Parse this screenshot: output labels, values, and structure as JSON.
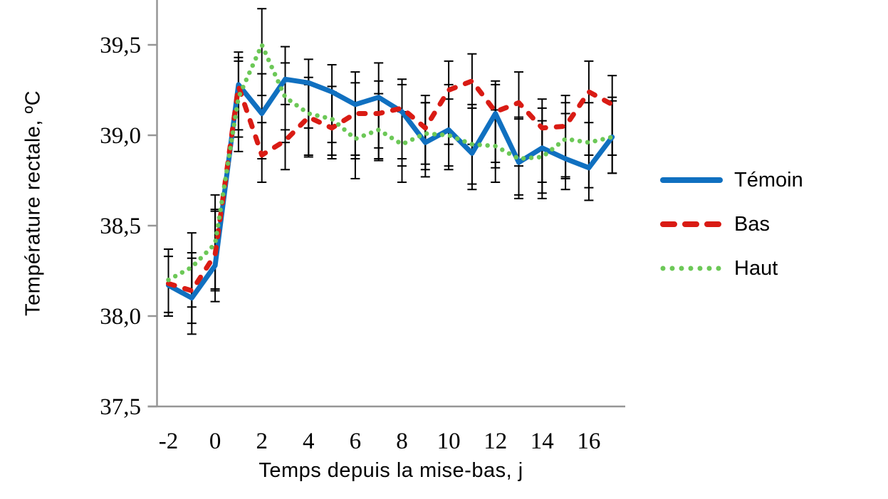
{
  "chart_data": {
    "type": "line",
    "title": "",
    "x_label": "Temps depuis la mise-bas, j",
    "y_label": "Température rectale, ºC",
    "x": [
      -2,
      -1,
      0,
      1,
      2,
      3,
      4,
      5,
      6,
      7,
      8,
      9,
      10,
      11,
      12,
      13,
      14,
      15,
      16,
      17
    ],
    "x_tick_values": [
      -2,
      0,
      2,
      4,
      6,
      8,
      10,
      12,
      14,
      16
    ],
    "x_tick_labels": [
      "-2",
      "0",
      "2",
      "4",
      "6",
      "8",
      "10",
      "12",
      "14",
      "16"
    ],
    "y_tick_values": [
      39.5,
      39.0,
      38.5,
      38.0,
      37.5
    ],
    "y_tick_labels": [
      "39,5",
      "39,0",
      "38,5",
      "38,0",
      "37,5"
    ],
    "ylim": [
      37.5,
      39.75
    ],
    "grid": false,
    "legend_position": "right",
    "axis_color": "#969696",
    "error_bar_color": "#000000",
    "series": [
      {
        "name": "Témoin",
        "key": "temoin",
        "color": "#1070C0",
        "style": "solid",
        "values": [
          38.17,
          38.1,
          38.28,
          39.28,
          39.12,
          39.31,
          39.29,
          39.24,
          39.17,
          39.21,
          39.13,
          38.96,
          39.03,
          38.9,
          39.12,
          38.85,
          38.93,
          38.87,
          38.82,
          38.99
        ],
        "err_up": [
          0.2,
          0.25,
          0.3,
          0.18,
          0.22,
          0.18,
          0.13,
          0.15,
          0.18,
          0.19,
          0.15,
          0.22,
          0.25,
          0.25,
          0.16,
          0.25,
          0.22,
          0.25,
          0.25,
          0.22
        ],
        "err_down": [
          0.17,
          0.2,
          0.2,
          0.25,
          0.25,
          0.28,
          0.25,
          0.28,
          0.28,
          0.28,
          0.3,
          0.19,
          0.2,
          0.2,
          0.3,
          0.2,
          0.25,
          0.17,
          0.18,
          0.2
        ]
      },
      {
        "name": "Bas",
        "key": "bas",
        "color": "#D91B14",
        "style": "dashed",
        "values": [
          38.18,
          38.14,
          38.34,
          39.27,
          38.89,
          38.97,
          39.1,
          39.04,
          39.12,
          39.12,
          39.15,
          39.04,
          39.25,
          39.3,
          39.13,
          39.18,
          39.04,
          39.05,
          39.24,
          39.17
        ],
        "err_up": [
          0.15,
          0.18,
          0.25,
          0.16,
          0.18,
          0.2,
          0.18,
          0.2,
          0.17,
          0.18,
          0.16,
          0.18,
          0.16,
          0.15,
          0.17,
          0.17,
          0.16,
          0.17,
          0.17,
          0.16
        ],
        "err_down": [
          0.16,
          0.18,
          0.2,
          0.28,
          0.15,
          0.16,
          0.22,
          0.17,
          0.25,
          0.25,
          0.28,
          0.2,
          0.3,
          0.35,
          0.28,
          0.35,
          0.3,
          0.28,
          0.35,
          0.28
        ]
      },
      {
        "name": "Haut",
        "key": "haut",
        "color": "#6CC857",
        "style": "dotted",
        "values": [
          38.2,
          38.27,
          38.4,
          39.21,
          39.5,
          39.21,
          39.12,
          39.09,
          38.98,
          39.03,
          38.95,
          39.01,
          39.0,
          38.95,
          38.94,
          38.87,
          38.88,
          38.98,
          38.96,
          38.99
        ],
        "err_up": [
          0.17,
          0.19,
          0.27,
          0.2,
          0.2,
          0.19,
          0.2,
          0.18,
          0.2,
          0.2,
          0.18,
          0.17,
          0.2,
          0.22,
          0.2,
          0.22,
          0.2,
          0.2,
          0.22,
          0.2
        ],
        "err_down": [
          0.18,
          0.22,
          0.25,
          0.3,
          0.28,
          0.25,
          0.23,
          0.2,
          0.22,
          0.17,
          0.21,
          0.2,
          0.19,
          0.22,
          0.2,
          0.2,
          0.23,
          0.22,
          0.25,
          0.2
        ]
      }
    ]
  }
}
